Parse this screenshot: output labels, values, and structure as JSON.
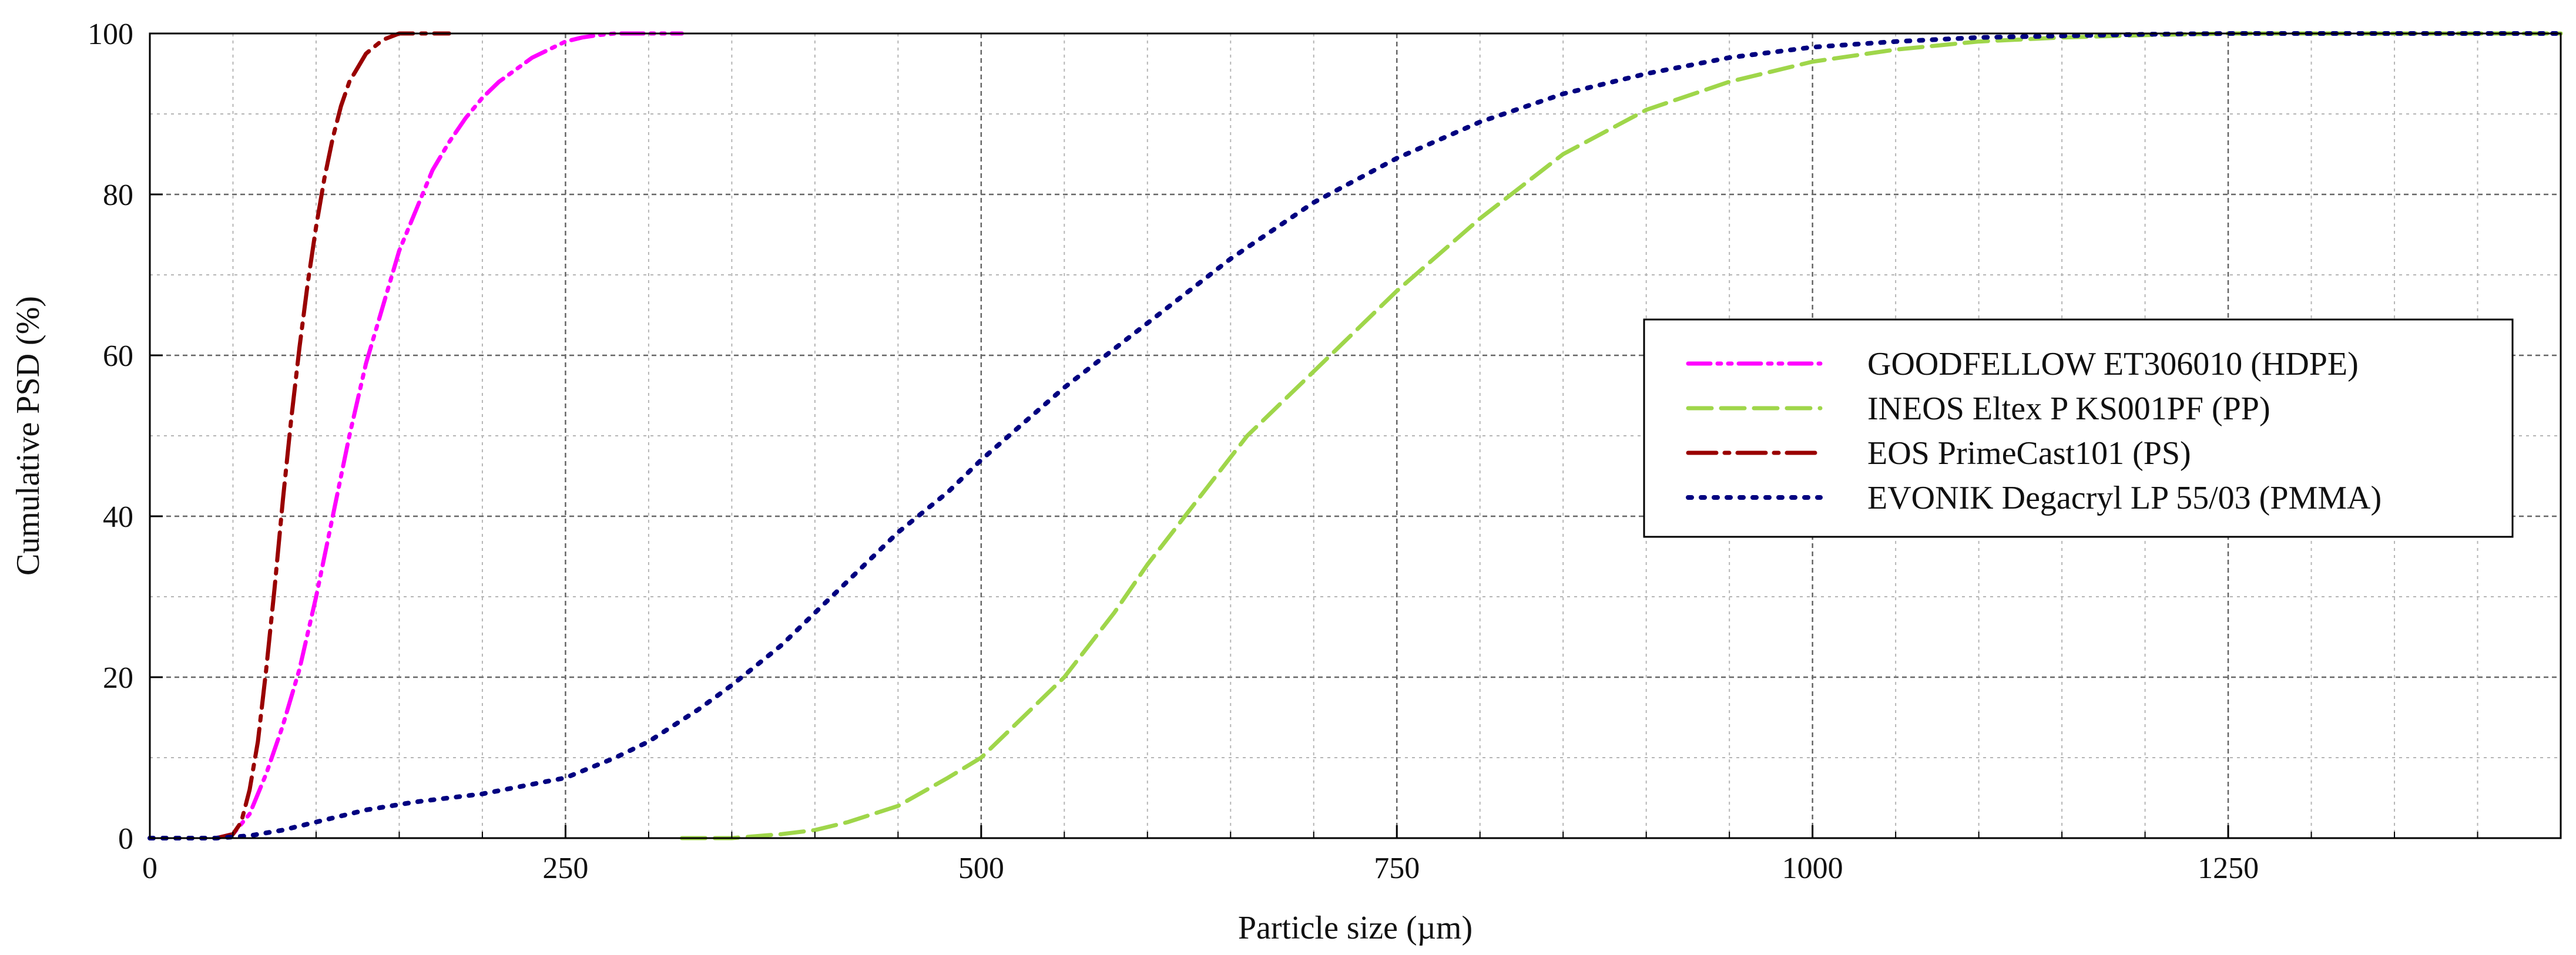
{
  "chart_data": {
    "type": "line",
    "title": "",
    "xlabel": "Particle size (µm)",
    "ylabel": "Cumulative PSD (%)",
    "xlim": [
      0,
      1450
    ],
    "ylim": [
      0,
      100
    ],
    "x_ticks": [
      0,
      250,
      500,
      750,
      1000,
      1250
    ],
    "y_ticks": [
      0,
      20,
      40,
      60,
      80,
      100
    ],
    "x_minor_step": 50,
    "y_minor_step": 10,
    "grid": true,
    "legend_position": "right",
    "series": [
      {
        "name": "GOODFELLOW ET306010 (HDPE)",
        "color": "#ff00ff",
        "dash": "dashdotdot",
        "x": [
          40,
          50,
          60,
          70,
          80,
          90,
          100,
          110,
          120,
          130,
          140,
          150,
          160,
          170,
          180,
          190,
          200,
          210,
          220,
          230,
          240,
          250,
          260,
          270,
          280,
          290,
          300,
          320
        ],
        "y": [
          0,
          0.5,
          3,
          8,
          14,
          21,
          30,
          40,
          50,
          59,
          66,
          73,
          78,
          83,
          86.5,
          89.5,
          92,
          94,
          95.5,
          97,
          98,
          99,
          99.5,
          99.8,
          100,
          100,
          100,
          100
        ]
      },
      {
        "name": "INEOS Eltex P KS001PF (PP)",
        "color": "#9fd64a",
        "dash": "dash",
        "x": [
          320,
          350,
          380,
          400,
          420,
          450,
          480,
          500,
          520,
          550,
          580,
          600,
          630,
          660,
          700,
          750,
          800,
          850,
          900,
          950,
          1000,
          1050,
          1100,
          1150,
          1200,
          1250,
          1300,
          1350,
          1400,
          1450
        ],
        "y": [
          0,
          0,
          0.5,
          1,
          2,
          4,
          7.5,
          10,
          14,
          20,
          28,
          34,
          42,
          50,
          58,
          68,
          77,
          85,
          90.5,
          94,
          96.5,
          98,
          99,
          99.5,
          99.8,
          100,
          100,
          100,
          100,
          100
        ]
      },
      {
        "name": "EOS PrimeCast101 (PS)",
        "color": "#990000",
        "dash": "longdashdot",
        "x": [
          40,
          50,
          55,
          60,
          65,
          70,
          75,
          80,
          85,
          90,
          95,
          100,
          105,
          110,
          115,
          120,
          130,
          140,
          150,
          160,
          170,
          180
        ],
        "y": [
          0,
          0.5,
          2,
          6,
          12,
          21,
          31,
          42,
          52,
          61,
          69,
          76,
          82,
          87,
          91,
          94,
          97.5,
          99.2,
          100,
          100,
          100,
          100
        ]
      },
      {
        "name": "EVONIK Degacryl LP 55/03 (PMMA)",
        "color": "#000080",
        "dash": "dot",
        "x": [
          0,
          40,
          60,
          80,
          100,
          130,
          160,
          200,
          250,
          280,
          300,
          330,
          350,
          380,
          400,
          430,
          450,
          480,
          500,
          550,
          600,
          650,
          700,
          750,
          800,
          850,
          900,
          950,
          1000,
          1050,
          1100,
          1150,
          1200,
          1250,
          1300,
          1350,
          1400,
          1450
        ],
        "y": [
          0,
          0,
          0.3,
          1,
          2,
          3.5,
          4.5,
          5.5,
          7.5,
          10,
          12,
          16,
          19,
          24,
          28,
          34,
          38,
          43,
          47,
          56,
          64,
          72,
          79,
          84.5,
          89,
          92.5,
          95,
          97,
          98.3,
          99,
          99.5,
          99.7,
          99.9,
          100,
          100,
          100,
          100,
          100
        ]
      }
    ]
  }
}
